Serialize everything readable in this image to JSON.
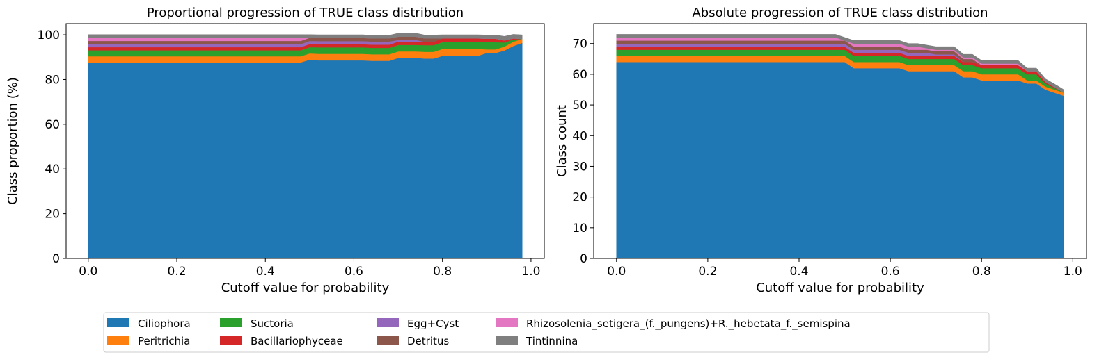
{
  "legend": {
    "location": "bottom-center",
    "columns": 5
  },
  "chart_data": [
    {
      "type": "area",
      "stacked": true,
      "title": "Proportional progression of TRUE class distribution",
      "xlabel": "Cutoff value for probability",
      "ylabel": "Class proportion (%)",
      "xlim": [
        -0.05,
        1.03
      ],
      "ylim": [
        0,
        105
      ],
      "xticks": [
        "0.0",
        "0.2",
        "0.4",
        "0.6",
        "0.8",
        "1.0"
      ],
      "yticks": [
        "0",
        "20",
        "40",
        "60",
        "80",
        "100"
      ],
      "grid": false,
      "x": [
        0.0,
        0.48,
        0.5,
        0.52,
        0.62,
        0.64,
        0.66,
        0.68,
        0.7,
        0.72,
        0.74,
        0.76,
        0.78,
        0.8,
        0.82,
        0.86,
        0.88,
        0.9,
        0.92,
        0.94,
        0.96,
        0.98
      ],
      "series": [
        {
          "name": "Ciliophora",
          "color": "#1f77b4",
          "values": [
            87.7,
            87.7,
            88.9,
            88.6,
            88.6,
            88.4,
            88.4,
            88.4,
            89.7,
            89.7,
            89.7,
            89.4,
            89.4,
            90.6,
            90.6,
            90.6,
            90.6,
            91.9,
            91.9,
            93.0,
            95.0,
            96.4
          ]
        },
        {
          "name": "Peritrichia",
          "color": "#ff7f0e",
          "values": [
            2.7,
            2.7,
            2.8,
            2.9,
            2.9,
            2.9,
            2.9,
            2.9,
            2.9,
            2.9,
            2.9,
            3.0,
            3.0,
            3.1,
            3.1,
            3.1,
            3.1,
            1.6,
            1.6,
            1.8,
            1.9,
            1.8
          ]
        },
        {
          "name": "Suctoria",
          "color": "#2ca02c",
          "values": [
            2.7,
            2.7,
            2.8,
            2.9,
            2.9,
            2.9,
            2.9,
            2.9,
            2.9,
            2.9,
            2.9,
            3.0,
            3.0,
            3.1,
            3.1,
            3.1,
            3.1,
            3.2,
            3.2,
            1.8,
            1.0,
            0.0
          ]
        },
        {
          "name": "Bacillariophyceae",
          "color": "#d62728",
          "values": [
            1.4,
            1.4,
            1.4,
            1.4,
            1.4,
            1.4,
            1.4,
            1.4,
            1.5,
            1.5,
            1.5,
            1.5,
            1.5,
            1.6,
            1.6,
            1.6,
            1.6,
            1.6,
            1.6,
            0.9,
            0.5,
            0.0
          ]
        },
        {
          "name": "Egg+Cyst",
          "color": "#9467bd",
          "values": [
            1.4,
            1.4,
            1.4,
            1.4,
            1.4,
            1.4,
            1.4,
            1.4,
            0.7,
            0.7,
            0.7,
            0.0,
            0.0,
            0.0,
            0.0,
            0.0,
            0.0,
            0.0,
            0.0,
            0.0,
            0.0,
            0.0
          ]
        },
        {
          "name": "Detritus",
          "color": "#8c564b",
          "values": [
            1.4,
            1.4,
            1.4,
            1.4,
            1.4,
            1.4,
            1.4,
            1.4,
            1.5,
            1.5,
            1.5,
            1.5,
            1.5,
            0.0,
            0.0,
            0.0,
            0.0,
            0.0,
            0.0,
            0.0,
            0.0,
            0.0
          ]
        },
        {
          "name": "Rhizosolenia_setigera_(f._pungens)+R._hebetata_f._semispina",
          "color": "#e377c2",
          "values": [
            1.4,
            1.4,
            0.0,
            0.0,
            0.0,
            0.0,
            0.0,
            0.0,
            0.0,
            0.0,
            0.0,
            0.0,
            0.0,
            0.0,
            0.0,
            0.0,
            0.0,
            0.0,
            0.0,
            0.0,
            0.0,
            0.0
          ]
        },
        {
          "name": "Tintinnina",
          "color": "#7f7f7f",
          "values": [
            1.4,
            1.4,
            1.4,
            1.4,
            1.4,
            1.4,
            1.4,
            1.4,
            1.5,
            1.5,
            1.5,
            1.5,
            1.5,
            1.6,
            1.6,
            1.6,
            1.6,
            1.6,
            1.6,
            1.8,
            1.8,
            1.8
          ]
        }
      ]
    },
    {
      "type": "area",
      "stacked": true,
      "title": "Absolute progression of TRUE class distribution",
      "xlabel": "Cutoff value for probability",
      "ylabel": "Class count",
      "xlim": [
        -0.05,
        1.03
      ],
      "ylim": [
        0,
        76.5
      ],
      "xticks": [
        "0.0",
        "0.2",
        "0.4",
        "0.6",
        "0.8",
        "1.0"
      ],
      "yticks": [
        "0",
        "10",
        "20",
        "30",
        "40",
        "50",
        "60",
        "70"
      ],
      "grid": false,
      "x": [
        0.0,
        0.48,
        0.5,
        0.52,
        0.62,
        0.64,
        0.66,
        0.68,
        0.7,
        0.72,
        0.74,
        0.76,
        0.78,
        0.8,
        0.82,
        0.86,
        0.88,
        0.9,
        0.92,
        0.94,
        0.96,
        0.98
      ],
      "series": [
        {
          "name": "Ciliophora",
          "color": "#1f77b4",
          "values": [
            64,
            64,
            64,
            62,
            62,
            61,
            61,
            61,
            61,
            61,
            61,
            59,
            59,
            58,
            58,
            58,
            58,
            57,
            57,
            55,
            54,
            53
          ]
        },
        {
          "name": "Peritrichia",
          "color": "#ff7f0e",
          "values": [
            2,
            2,
            2,
            2,
            2,
            2,
            2,
            2,
            2,
            2,
            2,
            2,
            2,
            2,
            2,
            2,
            2,
            1,
            1,
            1,
            1,
            1
          ]
        },
        {
          "name": "Suctoria",
          "color": "#2ca02c",
          "values": [
            2,
            2,
            2,
            2,
            2,
            2,
            2,
            2,
            2,
            2,
            2,
            2,
            2,
            2,
            2,
            2,
            2,
            2,
            2,
            1,
            0.5,
            0
          ]
        },
        {
          "name": "Bacillariophyceae",
          "color": "#d62728",
          "values": [
            1,
            1,
            1,
            1,
            1,
            1,
            1,
            1,
            1,
            1,
            1,
            1,
            1,
            1,
            1,
            1,
            1,
            1,
            1,
            0.5,
            0.3,
            0
          ]
        },
        {
          "name": "Egg+Cyst",
          "color": "#9467bd",
          "values": [
            1,
            1,
            1,
            1,
            1,
            1,
            1,
            1,
            0.5,
            0.5,
            0.5,
            0,
            0,
            0,
            0,
            0,
            0,
            0,
            0,
            0,
            0,
            0
          ]
        },
        {
          "name": "Detritus",
          "color": "#8c564b",
          "values": [
            1,
            1,
            1,
            1,
            1,
            1,
            1,
            1,
            1,
            1,
            1,
            1,
            1,
            0,
            0,
            0,
            0,
            0,
            0,
            0,
            0,
            0
          ]
        },
        {
          "name": "Rhizosolenia_setigera_(f._pungens)+R._hebetata_f._semispina",
          "color": "#e377c2",
          "values": [
            1,
            1,
            0,
            1,
            1,
            1,
            1,
            0.5,
            0.5,
            0.5,
            0.5,
            0.5,
            0.5,
            0.5,
            0.5,
            0.5,
            0.5,
            0,
            0,
            0,
            0,
            0
          ]
        },
        {
          "name": "Tintinnina",
          "color": "#7f7f7f",
          "values": [
            1,
            1,
            1,
            1,
            1,
            1,
            1,
            1,
            1,
            1,
            1,
            1,
            1,
            1,
            1,
            1,
            1,
            1,
            1,
            1,
            1,
            1
          ]
        }
      ]
    }
  ]
}
